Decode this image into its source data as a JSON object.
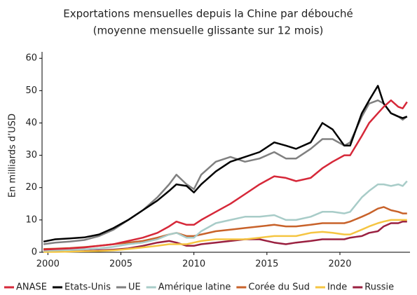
{
  "chart_data": {
    "type": "line",
    "title": "Exportations mensuelles depuis la Chine par débouché",
    "subtitle": "(moyenne mensuelle glissante sur 12 mois)",
    "y_label": "En milliards d’USD",
    "x": [
      1999.7,
      2000.5,
      2001.5,
      2002.5,
      2003.5,
      2004.5,
      2005.5,
      2006.5,
      2007.5,
      2008.3,
      2008.8,
      2009.5,
      2010.0,
      2010.5,
      2011.5,
      2012.5,
      2013.5,
      2014.5,
      2015.5,
      2016.3,
      2017.0,
      2018.0,
      2018.8,
      2019.5,
      2020.3,
      2020.7,
      2021.5,
      2022.0,
      2022.6,
      2023.0,
      2023.5,
      2024.0,
      2024.3,
      2024.6
    ],
    "series": [
      {
        "name": "ANASE",
        "color": "#d62839",
        "values": [
          0.8,
          1,
          1.2,
          1.5,
          2,
          2.5,
          3.5,
          4.5,
          6,
          8,
          9.5,
          8.5,
          8.5,
          10,
          12.5,
          15,
          18,
          21,
          23.5,
          23,
          22,
          23,
          26,
          28,
          30,
          30,
          36,
          40,
          43,
          45,
          47,
          45,
          44.5,
          46.5
        ]
      },
      {
        "name": "Etats-Unis",
        "color": "#000000",
        "values": [
          3.3,
          4,
          4.3,
          4.6,
          5.5,
          7.5,
          10,
          13,
          16,
          19,
          21,
          20.5,
          18.5,
          21,
          25,
          28,
          29.5,
          31,
          34,
          33,
          32,
          34,
          40,
          38,
          33,
          33,
          43,
          47,
          51.5,
          46,
          43,
          42,
          41.5,
          42
        ]
      },
      {
        "name": "UE",
        "color": "#808080",
        "values": [
          2.5,
          3,
          3.3,
          3.8,
          5,
          7,
          10,
          13,
          17,
          21,
          24,
          21,
          19.5,
          24,
          28,
          29.5,
          28,
          29,
          31,
          29,
          29,
          32,
          35,
          35,
          33,
          34,
          42,
          46,
          47,
          46,
          43,
          42,
          41,
          42
        ]
      },
      {
        "name": "Amérique latine",
        "color": "#a8ccc8",
        "values": [
          0.5,
          0.6,
          0.7,
          0.9,
          1.2,
          1.7,
          2.5,
          3,
          4,
          5.5,
          6,
          4.5,
          4.5,
          6.5,
          9,
          10,
          11,
          11,
          11.5,
          10,
          10,
          11,
          12.5,
          12.5,
          12,
          12.5,
          17,
          19,
          21,
          21,
          20.5,
          21,
          20.5,
          22
        ]
      },
      {
        "name": "Corée du Sud",
        "color": "#c8622a",
        "values": [
          1,
          1.1,
          1.3,
          1.6,
          2,
          2.5,
          3,
          3.5,
          4.5,
          5.5,
          6,
          5,
          5,
          5.5,
          6.5,
          7,
          7.5,
          8,
          8.5,
          8,
          8,
          8.5,
          9,
          9,
          9,
          9.5,
          11,
          12,
          13.5,
          14,
          13,
          12.5,
          12,
          12
        ]
      },
      {
        "name": "Inde",
        "color": "#f5c542",
        "values": [
          0.1,
          0.1,
          0.2,
          0.3,
          0.4,
          0.6,
          1,
          1.5,
          2,
          2.5,
          2.5,
          2.5,
          3,
          3.5,
          4,
          4,
          4,
          4.5,
          5,
          5,
          5,
          6,
          6.3,
          6,
          5.5,
          5.5,
          7,
          8,
          9,
          9.5,
          10,
          10,
          10,
          10
        ]
      },
      {
        "name": "Russie",
        "color": "#9a2040",
        "values": [
          0.2,
          0.2,
          0.3,
          0.4,
          0.6,
          0.8,
          1.2,
          2,
          3,
          3.5,
          3,
          2,
          2,
          2.5,
          3,
          3.5,
          4,
          4,
          3,
          2.5,
          3,
          3.5,
          4,
          4,
          4,
          4.5,
          5,
          6,
          6.5,
          8,
          9,
          9,
          9.5,
          9.5
        ]
      }
    ],
    "xlim": [
      1999.6,
      2024.8
    ],
    "xticks": [
      2000,
      2005,
      2010,
      2015,
      2020
    ],
    "ylim": [
      0,
      62
    ],
    "yticks": [
      0,
      10,
      20,
      30,
      40,
      50,
      60
    ]
  }
}
